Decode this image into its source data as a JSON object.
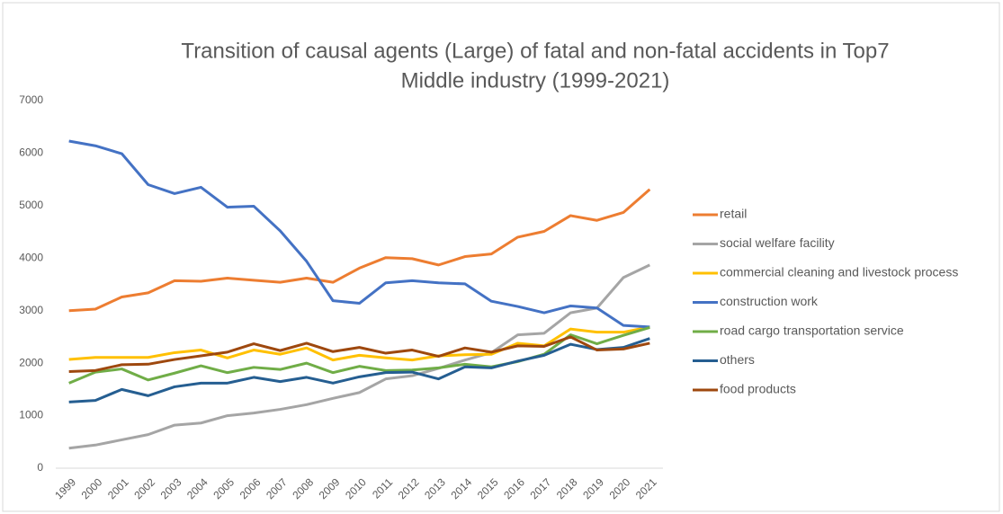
{
  "chart_data": {
    "type": "line",
    "title": [
      "Transition of causal agents (Large) of fatal and non-fatal accidents in Top7",
      "Middle industry (1999-2021)"
    ],
    "categories": [
      "1999",
      "2000",
      "2001",
      "2002",
      "2003",
      "2004",
      "2005",
      "2006",
      "2007",
      "2008",
      "2009",
      "2010",
      "2011",
      "2012",
      "2013",
      "2014",
      "2015",
      "2016",
      "2017",
      "2018",
      "2019",
      "2020",
      "2021"
    ],
    "ylim": [
      0,
      7000
    ],
    "yticks": [
      0,
      1000,
      2000,
      3000,
      4000,
      5000,
      6000,
      7000
    ],
    "grid": false,
    "legend": "right",
    "series": [
      {
        "name": "retail",
        "color": "#ED7D31",
        "values": [
          3000,
          3030,
          3260,
          3340,
          3570,
          3560,
          3620,
          3580,
          3540,
          3620,
          3540,
          3810,
          4010,
          3990,
          3870,
          4030,
          4080,
          4400,
          4510,
          4810,
          4720,
          4870,
          5310
        ]
      },
      {
        "name": "social welfare facility",
        "color": "#A5A5A5",
        "values": [
          380,
          440,
          540,
          640,
          820,
          860,
          1000,
          1050,
          1120,
          1210,
          1330,
          1440,
          1700,
          1760,
          1900,
          2060,
          2200,
          2540,
          2570,
          2960,
          3050,
          3630,
          3870
        ]
      },
      {
        "name": "commercial cleaning and livestock process",
        "color": "#FFC000",
        "values": [
          2070,
          2110,
          2110,
          2110,
          2200,
          2250,
          2100,
          2250,
          2170,
          2290,
          2060,
          2150,
          2100,
          2060,
          2140,
          2160,
          2170,
          2380,
          2330,
          2650,
          2590,
          2590,
          2690
        ]
      },
      {
        "name": "construction work",
        "color": "#4472C4",
        "values": [
          6230,
          6140,
          5990,
          5400,
          5230,
          5350,
          4970,
          4990,
          4520,
          3940,
          3190,
          3140,
          3530,
          3570,
          3530,
          3510,
          3180,
          3080,
          2960,
          3090,
          3050,
          2720,
          2690
        ]
      },
      {
        "name": "road cargo transportation service",
        "color": "#70AD47",
        "values": [
          1620,
          1830,
          1890,
          1680,
          1810,
          1950,
          1820,
          1920,
          1880,
          2000,
          1820,
          1940,
          1860,
          1870,
          1910,
          1980,
          1930,
          2030,
          2170,
          2540,
          2370,
          2530,
          2680
        ]
      },
      {
        "name": "others",
        "color": "#255E91",
        "values": [
          1260,
          1290,
          1500,
          1380,
          1550,
          1620,
          1620,
          1730,
          1650,
          1730,
          1620,
          1740,
          1820,
          1830,
          1700,
          1930,
          1910,
          2040,
          2150,
          2360,
          2260,
          2300,
          2470
        ]
      },
      {
        "name": "food products",
        "color": "#9E480E",
        "values": [
          1840,
          1860,
          1970,
          1980,
          2070,
          2140,
          2210,
          2370,
          2240,
          2380,
          2220,
          2300,
          2190,
          2250,
          2130,
          2290,
          2210,
          2330,
          2320,
          2500,
          2250,
          2270,
          2380
        ]
      }
    ]
  }
}
